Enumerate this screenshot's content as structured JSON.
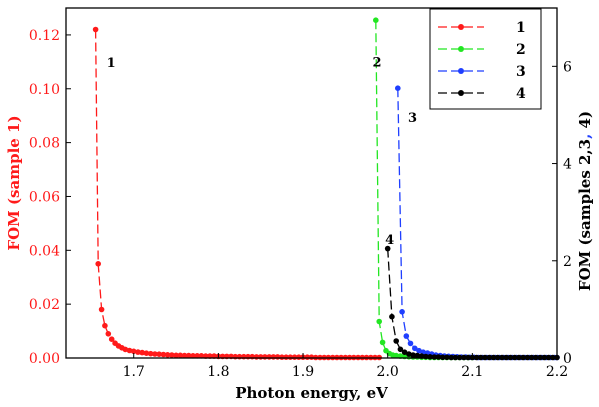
{
  "chart_data": {
    "type": "line",
    "xlabel": "Photon energy, eV",
    "ylabel_left": "FOM (sample 1)",
    "ylabel_right_parts": [
      {
        "text": "FOM (samples 2,3",
        "color": "#000000"
      },
      {
        "text": ",",
        "color": "#1f3fff"
      },
      {
        "text": " 4)",
        "color": "#000000"
      }
    ],
    "xlim": [
      1.62,
      2.2
    ],
    "ylim_left": [
      0,
      0.13
    ],
    "ylim_right": [
      0,
      7.2
    ],
    "x_ticks": [
      "1.7",
      "1.8",
      "1.9",
      "2.0",
      "2.1",
      "2.2"
    ],
    "y_ticks_left": [
      "0.00",
      "0.02",
      "0.04",
      "0.06",
      "0.08",
      "0.10",
      "0.12"
    ],
    "y_ticks_right": [
      "0",
      "2",
      "4",
      "6"
    ],
    "legend_position": "top-right",
    "colors": {
      "left_axis": "#ff1a1a",
      "s1": "#ff1a1a",
      "s2": "#22e622",
      "s3": "#1f3fff",
      "s4": "#000000"
    },
    "series": [
      {
        "name": "1",
        "color": "#ff1a1a",
        "axis": "left",
        "x": [
          1.655,
          1.658,
          1.662,
          1.666,
          1.67,
          1.674,
          1.678,
          1.682,
          1.686,
          1.69,
          1.695,
          1.7,
          1.705,
          1.71,
          1.715,
          1.72,
          1.725,
          1.73,
          1.735,
          1.74,
          1.745,
          1.75,
          1.755,
          1.76,
          1.765,
          1.77,
          1.775,
          1.78,
          1.785,
          1.79,
          1.795,
          1.8,
          1.805,
          1.81,
          1.815,
          1.82,
          1.825,
          1.83,
          1.835,
          1.84,
          1.845,
          1.85,
          1.855,
          1.86,
          1.865,
          1.87,
          1.875,
          1.88,
          1.885,
          1.89,
          1.895,
          1.9,
          1.905,
          1.91,
          1.915,
          1.92,
          1.925,
          1.93,
          1.935,
          1.94,
          1.945,
          1.95,
          1.955,
          1.96,
          1.965,
          1.97,
          1.975,
          1.98,
          1.985,
          1.99
        ],
        "y": [
          0.122,
          0.035,
          0.018,
          0.012,
          0.009,
          0.007,
          0.0055,
          0.0045,
          0.0038,
          0.0032,
          0.0028,
          0.0025,
          0.0022,
          0.002,
          0.0018,
          0.0016,
          0.0015,
          0.0014,
          0.0013,
          0.0012,
          0.0011,
          0.001,
          0.001,
          0.0009,
          0.0009,
          0.0008,
          0.0008,
          0.0008,
          0.0007,
          0.0007,
          0.0007,
          0.0006,
          0.0006,
          0.0006,
          0.0006,
          0.0005,
          0.0005,
          0.0005,
          0.0005,
          0.0005,
          0.0004,
          0.0004,
          0.0004,
          0.0004,
          0.0004,
          0.0004,
          0.0003,
          0.0003,
          0.0003,
          0.0003,
          0.0003,
          0.0003,
          0.0003,
          0.0003,
          0.0002,
          0.0002,
          0.0002,
          0.0002,
          0.0002,
          0.0002,
          0.0002,
          0.0002,
          0.0002,
          0.0002,
          0.0002,
          0.0002,
          0.0002,
          0.0002,
          0.0002,
          0.0002
        ]
      },
      {
        "name": "2",
        "color": "#22e622",
        "axis": "right",
        "x": [
          1.986,
          1.99,
          1.994,
          1.998,
          2.002,
          2.006,
          2.01,
          2.015,
          2.02,
          2.025,
          2.03,
          2.035,
          2.04,
          2.045,
          2.05,
          2.055,
          2.06,
          2.065,
          2.07,
          2.075,
          2.08,
          2.085,
          2.09,
          2.095,
          2.1
        ],
        "y": [
          6.95,
          0.75,
          0.32,
          0.15,
          0.09,
          0.06,
          0.05,
          0.04,
          0.03,
          0.025,
          0.02,
          0.02,
          0.015,
          0.015,
          0.01,
          0.01,
          0.01,
          0.01,
          0.01,
          0.01,
          0.01,
          0.01,
          0.01,
          0.01,
          0.01
        ]
      },
      {
        "name": "3",
        "color": "#1f3fff",
        "axis": "right",
        "x": [
          2.012,
          2.017,
          2.022,
          2.027,
          2.032,
          2.037,
          2.042,
          2.047,
          2.052,
          2.057,
          2.062,
          2.067,
          2.072,
          2.077,
          2.082,
          2.087,
          2.092,
          2.097,
          2.102,
          2.107,
          2.112,
          2.117,
          2.122,
          2.127,
          2.132,
          2.137,
          2.142,
          2.147,
          2.152,
          2.157,
          2.162,
          2.167,
          2.172,
          2.177,
          2.182,
          2.187,
          2.192,
          2.197,
          2.2
        ],
        "y": [
          5.55,
          0.95,
          0.45,
          0.3,
          0.2,
          0.15,
          0.12,
          0.1,
          0.08,
          0.06,
          0.05,
          0.04,
          0.035,
          0.03,
          0.025,
          0.02,
          0.02,
          0.015,
          0.015,
          0.01,
          0.01,
          0.01,
          0.01,
          0.01,
          0.01,
          0.01,
          0.01,
          0.01,
          0.01,
          0.01,
          0.01,
          0.01,
          0.01,
          0.01,
          0.01,
          0.01,
          0.01,
          0.01,
          0.01
        ]
      },
      {
        "name": "4",
        "color": "#000000",
        "axis": "right",
        "x": [
          2.0,
          2.005,
          2.01,
          2.015,
          2.02,
          2.025,
          2.03,
          2.035,
          2.04,
          2.045,
          2.05,
          2.055,
          2.06,
          2.065,
          2.07,
          2.075,
          2.08,
          2.085,
          2.09,
          2.095,
          2.1,
          2.105,
          2.11,
          2.115,
          2.12,
          2.125,
          2.13,
          2.135,
          2.14,
          2.145,
          2.15,
          2.155,
          2.16,
          2.165,
          2.17,
          2.175,
          2.18,
          2.185,
          2.19,
          2.195,
          2.2
        ],
        "y": [
          2.25,
          0.85,
          0.35,
          0.18,
          0.12,
          0.08,
          0.06,
          0.05,
          0.04,
          0.03,
          0.025,
          0.02,
          0.02,
          0.015,
          0.015,
          0.01,
          0.01,
          0.01,
          0.01,
          0.01,
          0.01,
          0.01,
          0.01,
          0.01,
          0.01,
          0.01,
          0.01,
          0.01,
          0.01,
          0.01,
          0.01,
          0.01,
          0.01,
          0.01,
          0.01,
          0.01,
          0.01,
          0.01,
          0.01,
          0.01,
          0.01
        ]
      }
    ],
    "annotations": [
      {
        "text": "1",
        "x": 1.668,
        "y_axis": "left",
        "y": 0.108
      },
      {
        "text": "2",
        "x": 1.982,
        "y_axis": "right",
        "y": 6.0
      },
      {
        "text": "3",
        "x": 2.024,
        "y_axis": "right",
        "y": 4.85
      },
      {
        "text": "4",
        "x": 1.997,
        "y_axis": "right",
        "y": 2.35
      }
    ]
  }
}
